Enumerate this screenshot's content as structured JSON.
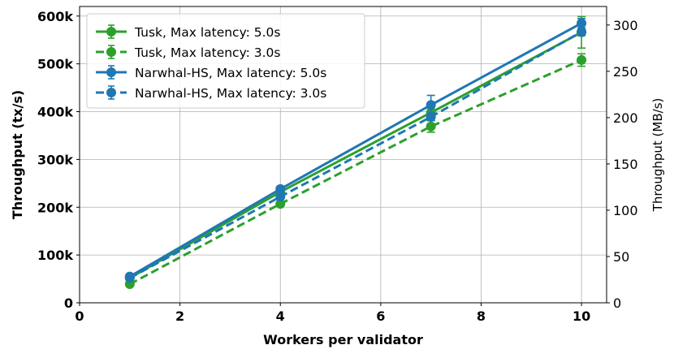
{
  "chart_data": {
    "type": "line",
    "xlabel": "Workers per validator",
    "ylabel": "Throughput (tx/s)",
    "y2label": "Throughput (MB/s)",
    "xlim": [
      0,
      10.5
    ],
    "ylim": [
      0,
      620000
    ],
    "y2lim": [
      0,
      320
    ],
    "x_ticks": [
      0,
      2,
      4,
      6,
      8,
      10
    ],
    "x_tick_labels": [
      "0",
      "2",
      "4",
      "6",
      "8",
      "10"
    ],
    "y_ticks": [
      0,
      100000,
      200000,
      300000,
      400000,
      500000,
      600000
    ],
    "y_tick_labels": [
      "0",
      "100k",
      "200k",
      "300k",
      "400k",
      "500k",
      "600k"
    ],
    "y2_ticks": [
      0,
      50,
      100,
      150,
      200,
      250,
      300
    ],
    "y2_tick_labels": [
      "0",
      "50",
      "100",
      "150",
      "200",
      "250",
      "300"
    ],
    "grid": true,
    "legend_position": "top-left",
    "x": [
      1,
      4,
      7,
      10
    ],
    "series": [
      {
        "name": "Tusk, Max latency: 5.0s",
        "color": "#2ca02c",
        "style": "solid",
        "values": [
          52000,
          232000,
          398000,
          566000
        ],
        "err": [
          3000,
          5000,
          9000,
          33000
        ]
      },
      {
        "name": "Tusk, Max latency: 3.0s",
        "color": "#2ca02c",
        "style": "dashed",
        "values": [
          39000,
          207000,
          369000,
          508000
        ],
        "err": [
          2000,
          4000,
          12000,
          13000
        ]
      },
      {
        "name": "Narwhal-HS, Max latency: 5.0s",
        "color": "#1f77b4",
        "style": "solid",
        "values": [
          55000,
          238000,
          414000,
          585000
        ],
        "err": [
          3000,
          5000,
          20000,
          10000
        ]
      },
      {
        "name": "Narwhal-HS, Max latency: 3.0s",
        "color": "#1f77b4",
        "style": "dashed",
        "values": [
          52000,
          222000,
          389000,
          567000
        ],
        "err": [
          3000,
          5000,
          8000,
          8000
        ]
      }
    ]
  }
}
